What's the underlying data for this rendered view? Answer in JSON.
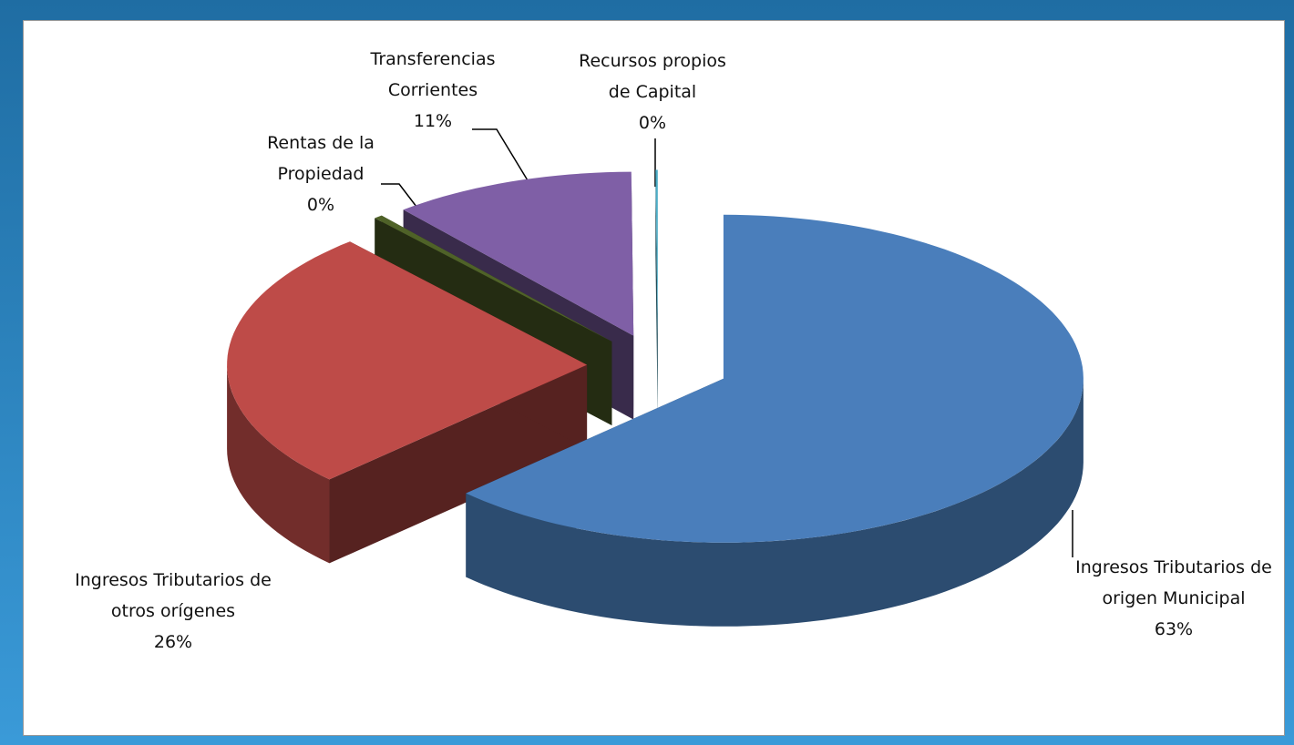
{
  "chart_data": {
    "type": "pie3d",
    "categories": [
      "Ingresos Tributarios de origen Municipal",
      "Ingresos Tributarios de otros orígenes",
      "Rentas de la Propiedad",
      "Transferencias Corrientes",
      "Recursos propios de Capital"
    ],
    "values": [
      63,
      26,
      0.4,
      11,
      0.1
    ],
    "value_labels": [
      "63%",
      "26%",
      "0%",
      "11%",
      "0%"
    ],
    "colors": [
      "#4a7ebb",
      "#be4b48",
      "#4f6228",
      "#7f5fa6",
      "#4bacc6"
    ]
  }
}
